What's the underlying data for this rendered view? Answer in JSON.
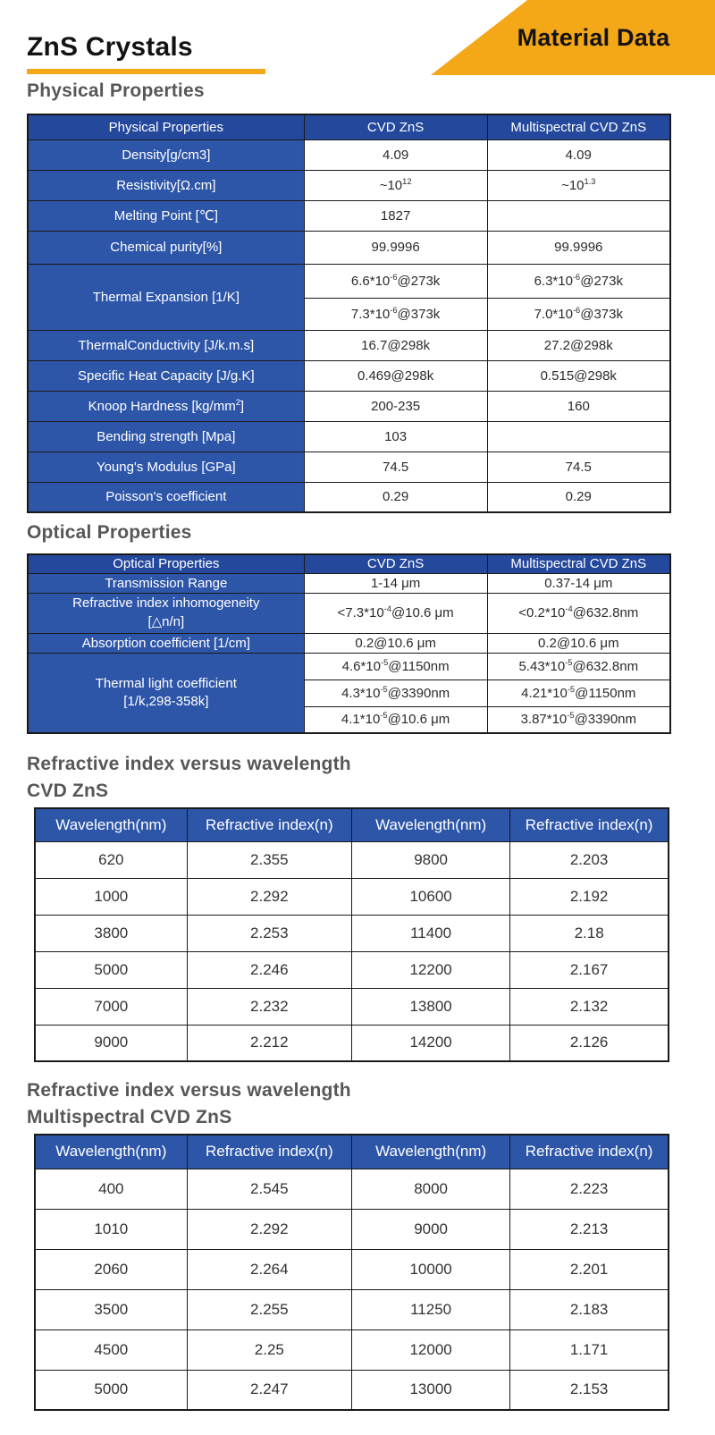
{
  "page": {
    "title": "ZnS Crystals",
    "banner_label": "Material Data"
  },
  "colors": {
    "accent_orange": "#F4A717",
    "table_header_blue": "#24489C",
    "table_cell_blue": "#2E56A8"
  },
  "physical_table": {
    "heading": "Physical Properties",
    "columns": [
      "Physical Properties",
      "CVD ZnS",
      "Multispectral CVD ZnS"
    ],
    "rows": {
      "density": {
        "label": "Density[g/cm3]",
        "cvd": "4.09",
        "multi": "4.09"
      },
      "resistivity": {
        "label": "Resistivity[Ω.cm]",
        "cvd": "~10^{12}",
        "multi": "~10^{1.3}"
      },
      "melting_point": {
        "label": "Melting Point [℃]",
        "cvd": "1827",
        "multi": ""
      },
      "chemical_purity": {
        "label": "Chemical purity[%]",
        "cvd": "99.9996",
        "multi": "99.9996"
      },
      "thermal_expansion": {
        "label": "Thermal Expansion [1/K]",
        "row1": {
          "cvd": "6.6*10^{-6}@273k",
          "multi": "6.3*10^{-6}@273k"
        },
        "row2": {
          "cvd": "7.3*10^{-6}@373k",
          "multi": "7.0*10^{-6}@373k"
        }
      },
      "thermal_conductivity": {
        "label": "ThermalConductivity [J/k.m.s]",
        "cvd": "16.7@298k",
        "multi": "27.2@298k"
      },
      "specific_heat": {
        "label": "Specific Heat Capacity [J/g.K]",
        "cvd": "0.469@298k",
        "multi": "0.515@298k"
      },
      "knoop_hardness": {
        "label": "Knoop Hardness [kg/mm^{2}]",
        "cvd": "200-235",
        "multi": "160"
      },
      "bending_strength": {
        "label": "Bending strength [Mpa]",
        "cvd": "103",
        "multi": ""
      },
      "youngs_modulus": {
        "label": "Young's Modulus [GPa]",
        "cvd": "74.5",
        "multi": "74.5"
      },
      "poissons_coefficient": {
        "label": "Poisson's coefficient",
        "cvd": "0.29",
        "multi": "0.29"
      }
    }
  },
  "optical_table": {
    "heading": "Optical Properties",
    "columns": [
      "Optical Properties",
      "CVD ZnS",
      "Multispectral CVD ZnS"
    ],
    "rows": {
      "transmission_range": {
        "label": "Transmission Range",
        "cvd": "1-14 μm",
        "multi": "0.37-14 μm"
      },
      "refractive_inhomogeneity": {
        "label": "Refractive index inhomogeneity",
        "label2": "[△n/n]",
        "cvd": "<7.3*10^{-4}@10.6 μm",
        "multi": "<0.2*10^{-4}@632.8nm"
      },
      "absorption_coefficient": {
        "label": "Absorption coefficient [1/cm]",
        "cvd": "0.2@10.6 μm",
        "multi": "0.2@10.6 μm"
      },
      "thermal_light_coefficient": {
        "label": "Thermal light coefficient",
        "label2": "[1/k,298-358k]",
        "row1": {
          "cvd": "4.6*10^{-5}@1150nm",
          "multi": "5.43*10^{-5}@632.8nm"
        },
        "row2": {
          "cvd": "4.3*10^{-5}@3390nm",
          "multi": "4.21*10^{-5}@1150nm"
        },
        "row3": {
          "cvd": "4.1*10^{-5}@10.6 μm",
          "multi": "3.87*10^{-5}@3390nm"
        }
      }
    }
  },
  "refractive_cvd": {
    "heading_line1": "Refractive index versus wavelength",
    "heading_line2": "CVD ZnS",
    "columns": [
      "Wavelength(nm)",
      "Refractive index(n)",
      "Wavelength(nm)",
      "Refractive index(n)"
    ],
    "rows": [
      [
        "620",
        "2.355",
        "9800",
        "2.203"
      ],
      [
        "1000",
        "2.292",
        "10600",
        "2.192"
      ],
      [
        "3800",
        "2.253",
        "11400",
        "2.18"
      ],
      [
        "5000",
        "2.246",
        "12200",
        "2.167"
      ],
      [
        "7000",
        "2.232",
        "13800",
        "2.132"
      ],
      [
        "9000",
        "2.212",
        "14200",
        "2.126"
      ]
    ]
  },
  "refractive_multispectral": {
    "heading_line1": "Refractive index versus wavelength",
    "heading_line2": "Multispectral CVD ZnS",
    "columns": [
      "Wavelength(nm)",
      "Refractive index(n)",
      "Wavelength(nm)",
      "Refractive index(n)"
    ],
    "rows": [
      [
        "400",
        "2.545",
        "8000",
        "2.223"
      ],
      [
        "1010",
        "2.292",
        "9000",
        "2.213"
      ],
      [
        "2060",
        "2.264",
        "10000",
        "2.201"
      ],
      [
        "3500",
        "2.255",
        "11250",
        "2.183"
      ],
      [
        "4500",
        "2.25",
        "12000",
        "1.171"
      ],
      [
        "5000",
        "2.247",
        "13000",
        "2.153"
      ]
    ]
  }
}
